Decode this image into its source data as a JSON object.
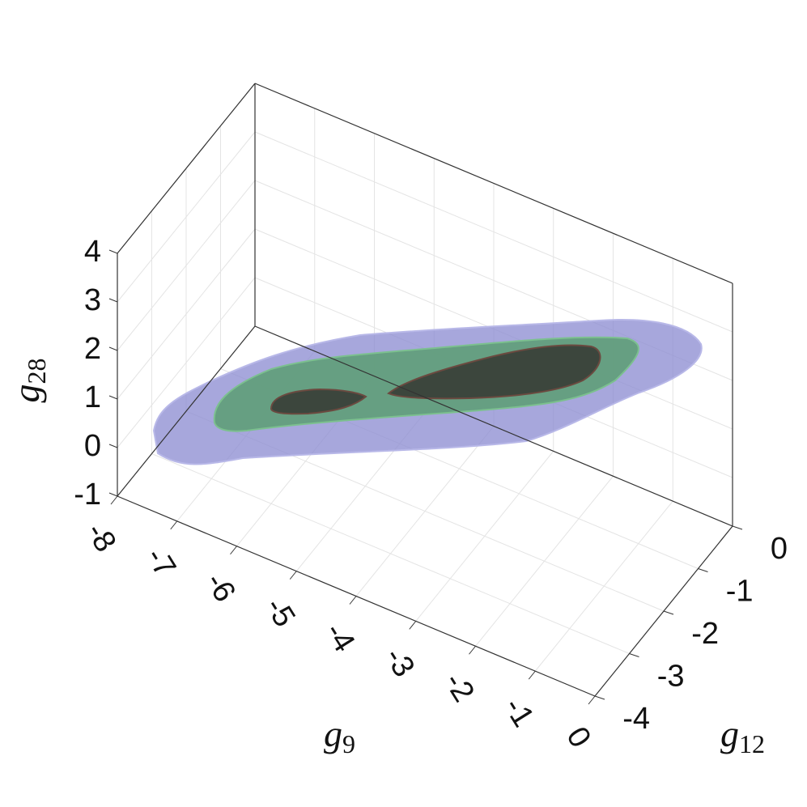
{
  "chart_data": {
    "type": "surface3d",
    "x_label": {
      "base": "g",
      "sub": "9"
    },
    "y_label": {
      "base": "g",
      "sub": "12"
    },
    "z_label": {
      "base": "g",
      "sub": "28"
    },
    "xlim": [
      -8,
      0
    ],
    "xticks": [
      -8,
      -7,
      -6,
      -5,
      -4,
      -3,
      -2,
      -1,
      0
    ],
    "ylim": [
      -4,
      0
    ],
    "yticks": [
      -4,
      -3,
      -2,
      -1,
      0
    ],
    "zlim": [
      -1,
      4
    ],
    "zticks": [
      -1,
      0,
      1,
      2,
      3,
      4
    ],
    "grid": true
  }
}
